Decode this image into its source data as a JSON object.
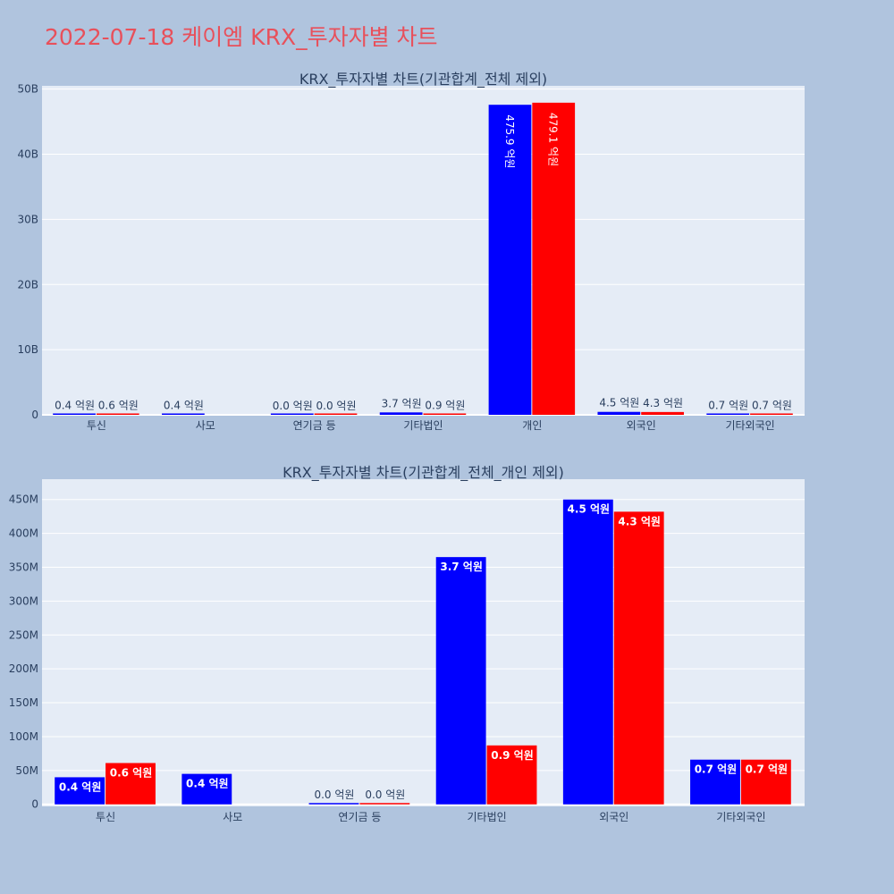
{
  "page_title": "2022-07-18 케이엠 KRX_투자자별 차트",
  "colors": {
    "background": "#b0c4de",
    "plot_bg": "#e5ecf6",
    "grid": "#ffffff",
    "title": "#e8505b",
    "text": "#2a3f5f",
    "series_a": "#0000ff",
    "series_b": "#ff0000"
  },
  "chart_data": [
    {
      "type": "bar",
      "title": "KRX_투자자별 차트(기관합계_전체 제외)",
      "categories": [
        "투신",
        "사모",
        "연기금 등",
        "기타법인",
        "개인",
        "외국인",
        "기타외국인"
      ],
      "series": [
        {
          "color": "#0000ff",
          "values": [
            40000000,
            45000000,
            2000000,
            370000000,
            47590000000,
            450000000,
            70000000
          ],
          "labels": [
            "0.4 억원",
            "0.4 억원",
            "0.0 억원",
            "3.7 억원",
            "475.9 억원",
            "4.5 억원",
            "0.7 억원"
          ]
        },
        {
          "color": "#ff0000",
          "values": [
            60000000,
            null,
            2000000,
            90000000,
            47910000000,
            430000000,
            70000000
          ],
          "labels": [
            "0.6 억원",
            "",
            "0.0 억원",
            "0.9 억원",
            "479.1 억원",
            "4.3 억원",
            "0.7 억원"
          ]
        }
      ],
      "ylim": [
        0,
        50500000000
      ],
      "yticks": [
        0,
        10000000000,
        20000000000,
        30000000000,
        40000000000,
        50000000000
      ],
      "ytick_labels": [
        "0",
        "10B",
        "20B",
        "30B",
        "40B",
        "50B"
      ],
      "grid": true,
      "legend": "none",
      "label_style": "outside-small, rotated inside for tall bars"
    },
    {
      "type": "bar",
      "title": "KRX_투자자별 차트(기관합계_전체_개인 제외)",
      "categories": [
        "투신",
        "사모",
        "연기금 등",
        "기타법인",
        "외국인",
        "기타외국인"
      ],
      "series": [
        {
          "color": "#0000ff",
          "values": [
            40000000,
            45000000,
            1000000,
            365000000,
            450000000,
            66000000
          ],
          "labels": [
            "0.4 억원",
            "0.4 억원",
            "0.0 억원",
            "3.7 억원",
            "4.5 억원",
            "0.7 억원"
          ]
        },
        {
          "color": "#ff0000",
          "values": [
            61000000,
            null,
            1000000,
            87000000,
            432000000,
            66000000
          ],
          "labels": [
            "0.6 억원",
            "",
            "0.0 억원",
            "0.9 억원",
            "4.3 억원",
            "0.7 억원"
          ]
        }
      ],
      "ylim": [
        -3000000,
        480000000
      ],
      "yticks": [
        0,
        50000000,
        100000000,
        150000000,
        200000000,
        250000000,
        300000000,
        350000000,
        400000000,
        450000000
      ],
      "ytick_labels": [
        "0",
        "50M",
        "100M",
        "150M",
        "200M",
        "250M",
        "300M",
        "350M",
        "400M",
        "450M"
      ],
      "grid": true,
      "legend": "none",
      "label_style": "inside-bold"
    }
  ]
}
